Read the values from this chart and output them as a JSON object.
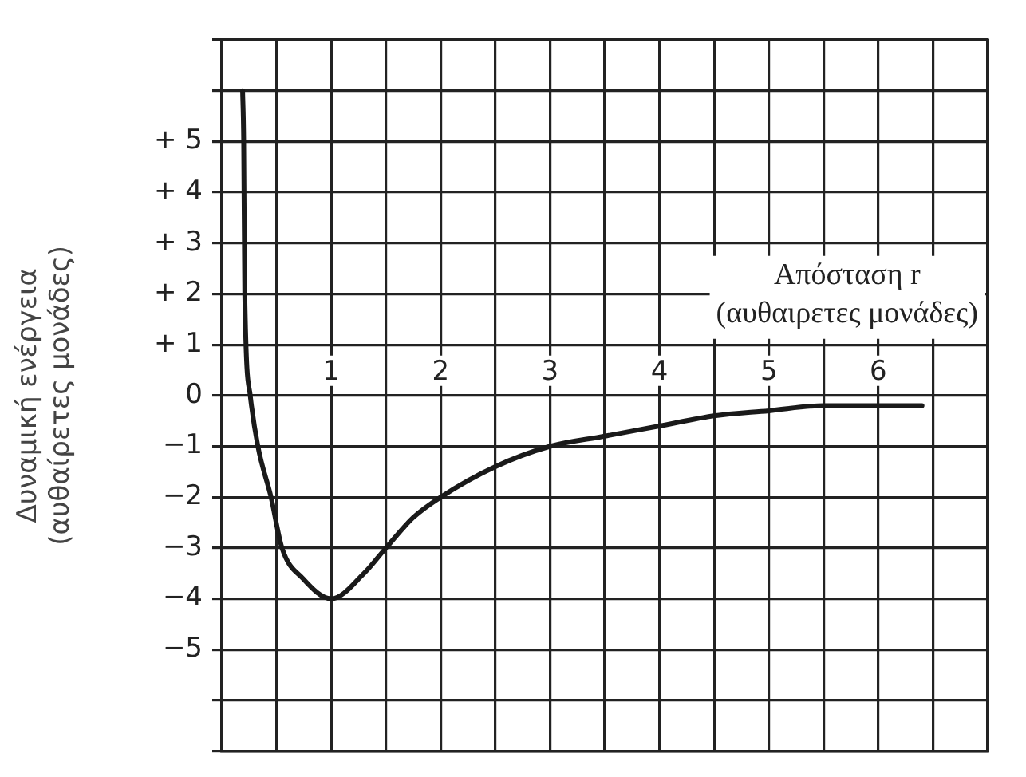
{
  "chart_data": {
    "type": "line",
    "xlabel": "Απόσταση r\n(αυθαιρετες μονάδες)",
    "ylabel": "Δυναμική ενέργεια\n(αυθαίρετες μονάδες)",
    "x": [
      0.19,
      0.2,
      0.21,
      0.26,
      0.33,
      0.45,
      0.55,
      0.74,
      1,
      1.3,
      1.5,
      1.75,
      2,
      2.5,
      3,
      3.5,
      4,
      4.5,
      5,
      5.5,
      6,
      6.4
    ],
    "series": [
      {
        "color": "#1a1a1a",
        "values": [
          6,
          5,
          2,
          0,
          -1,
          -2,
          -3,
          -3.6,
          -4,
          -3.5,
          -3,
          -2.4,
          -2,
          -1.4,
          -1,
          -0.8,
          -0.6,
          -0.4,
          -0.3,
          -0.2,
          -0.2,
          -0.2
        ]
      }
    ],
    "xlim": [
      0,
      7
    ],
    "xticks": [
      {
        "value": 0,
        "label": null
      },
      {
        "value": 0.5,
        "label": null
      },
      1,
      {
        "value": 1.5,
        "label": null
      },
      2,
      {
        "value": 2.5,
        "label": null
      },
      3,
      {
        "value": 3.5,
        "label": null
      },
      4,
      {
        "value": 4.5,
        "label": null
      },
      5,
      {
        "value": 5.5,
        "label": null
      },
      6,
      {
        "value": 6.5,
        "label": null
      },
      {
        "value": 7,
        "label": null
      }
    ],
    "ylim": [
      -7,
      7
    ],
    "yticks": [
      {
        "value": -7,
        "label": null
      },
      {
        "value": -6,
        "label": null
      },
      {
        "value": -5,
        "label": "−5"
      },
      {
        "value": -4,
        "label": "−4"
      },
      {
        "value": -3,
        "label": "−3"
      },
      {
        "value": -2,
        "label": "−2"
      },
      {
        "value": -1,
        "label": "−1"
      },
      0,
      {
        "value": 1,
        "label": "+ 1"
      },
      {
        "value": 2,
        "label": "+ 2"
      },
      {
        "value": 3,
        "label": "+ 3"
      },
      {
        "value": 4,
        "label": "+ 4"
      },
      {
        "value": 5,
        "label": "+ 5"
      },
      {
        "value": 6,
        "label": null
      },
      {
        "value": 7,
        "label": null
      }
    ],
    "grid": true,
    "legend": false,
    "marker": "none",
    "line_style": "solid"
  }
}
